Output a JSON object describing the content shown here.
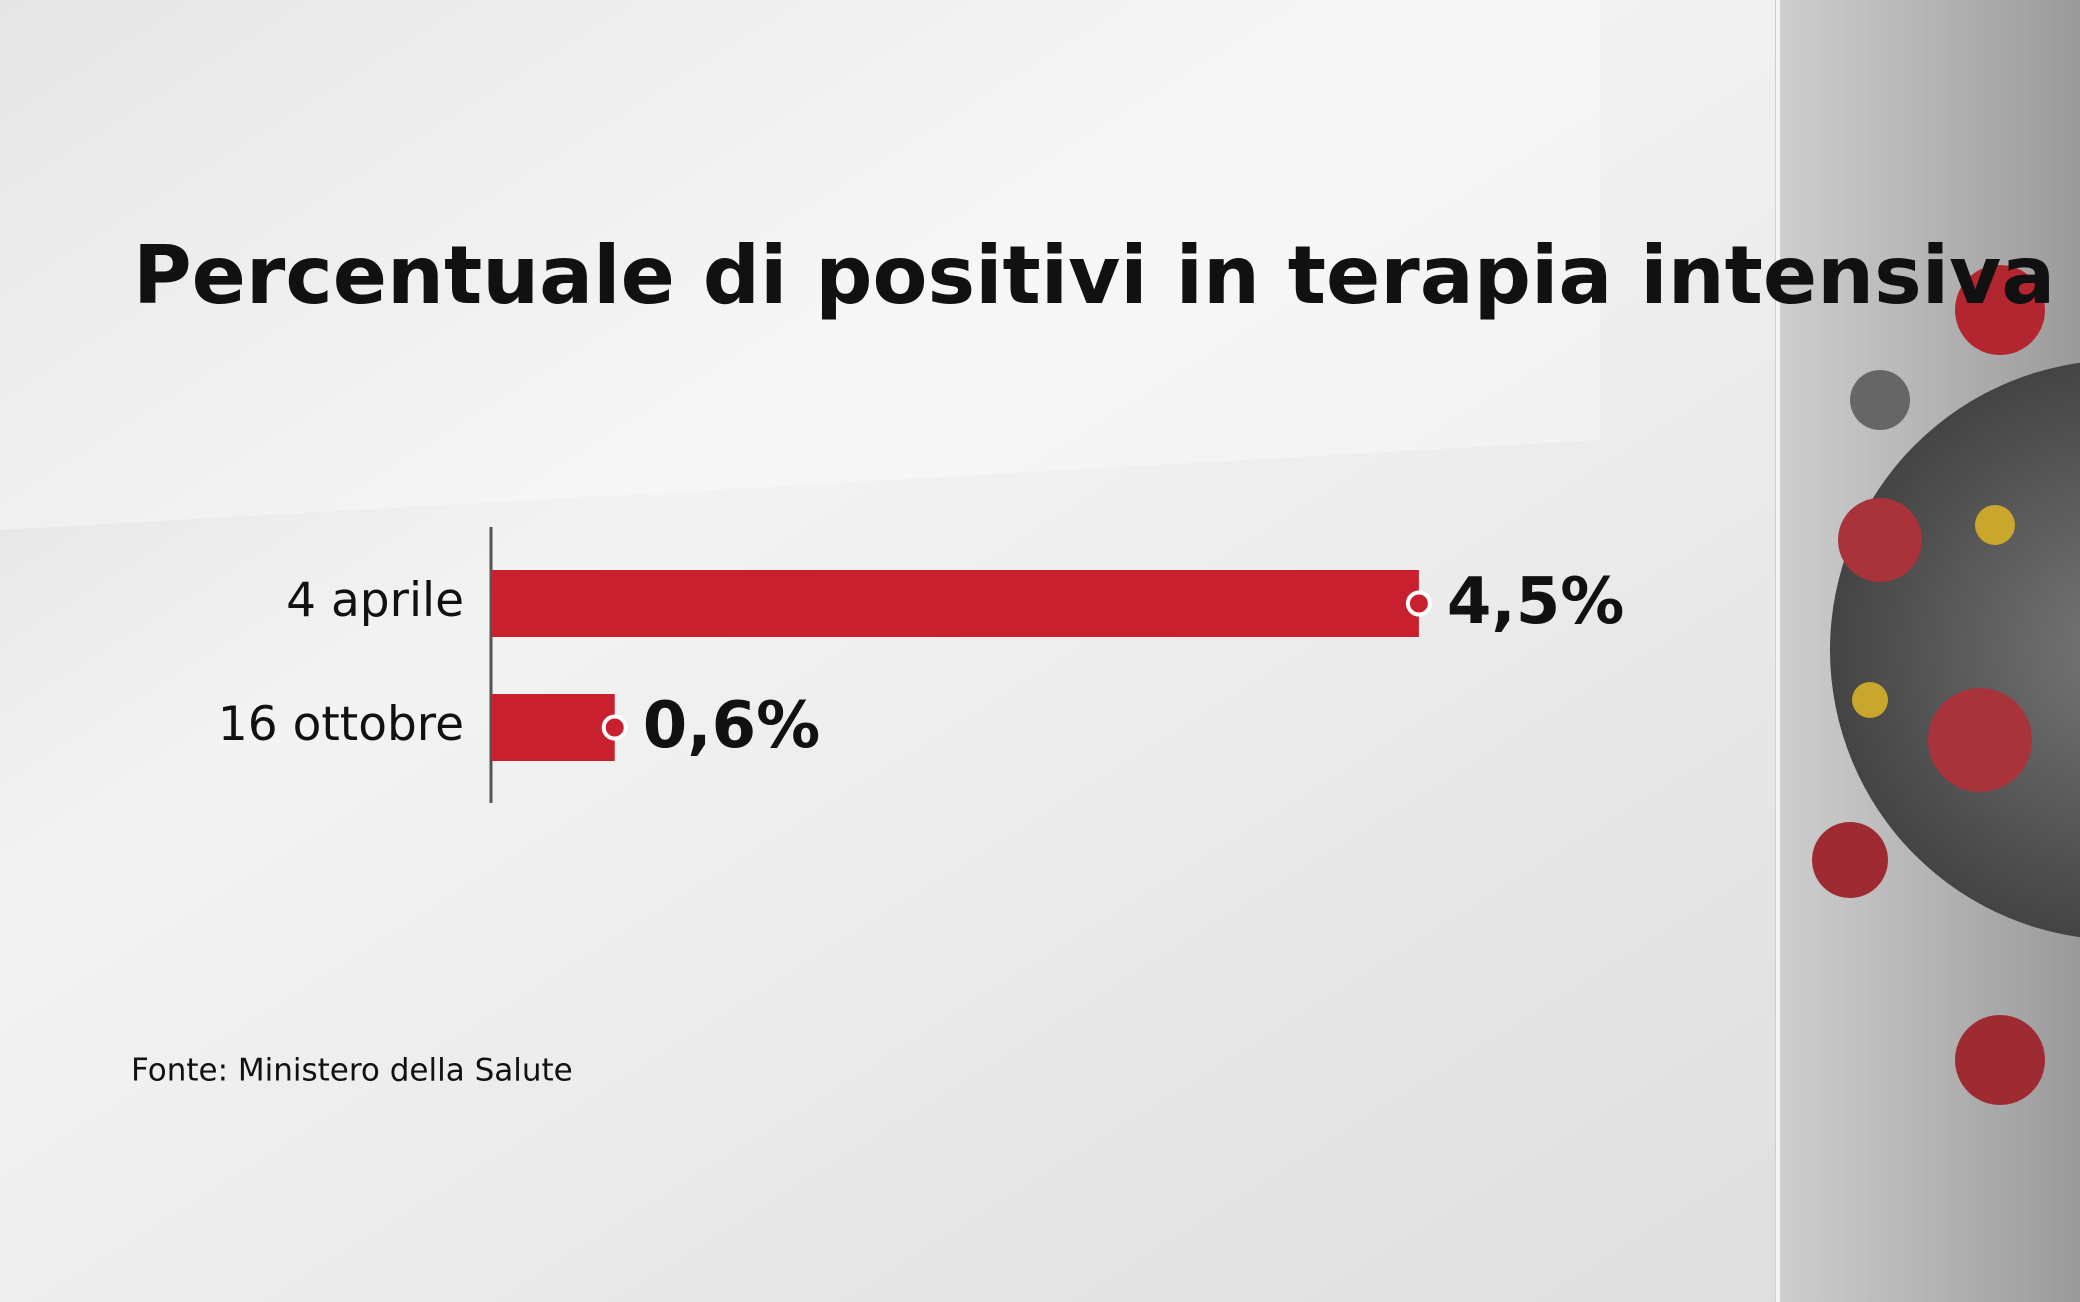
{
  "chart_data": {
    "type": "bar",
    "orientation": "horizontal",
    "title": "Percentuale di positivi in terapia intensiva",
    "categories": [
      "4 aprile",
      "16 ottobre"
    ],
    "values": [
      4.5,
      0.6
    ],
    "value_labels": [
      "4,5%",
      "0,6%"
    ],
    "color": "#c8202f",
    "source": "Fonte: Ministero della Salute"
  }
}
